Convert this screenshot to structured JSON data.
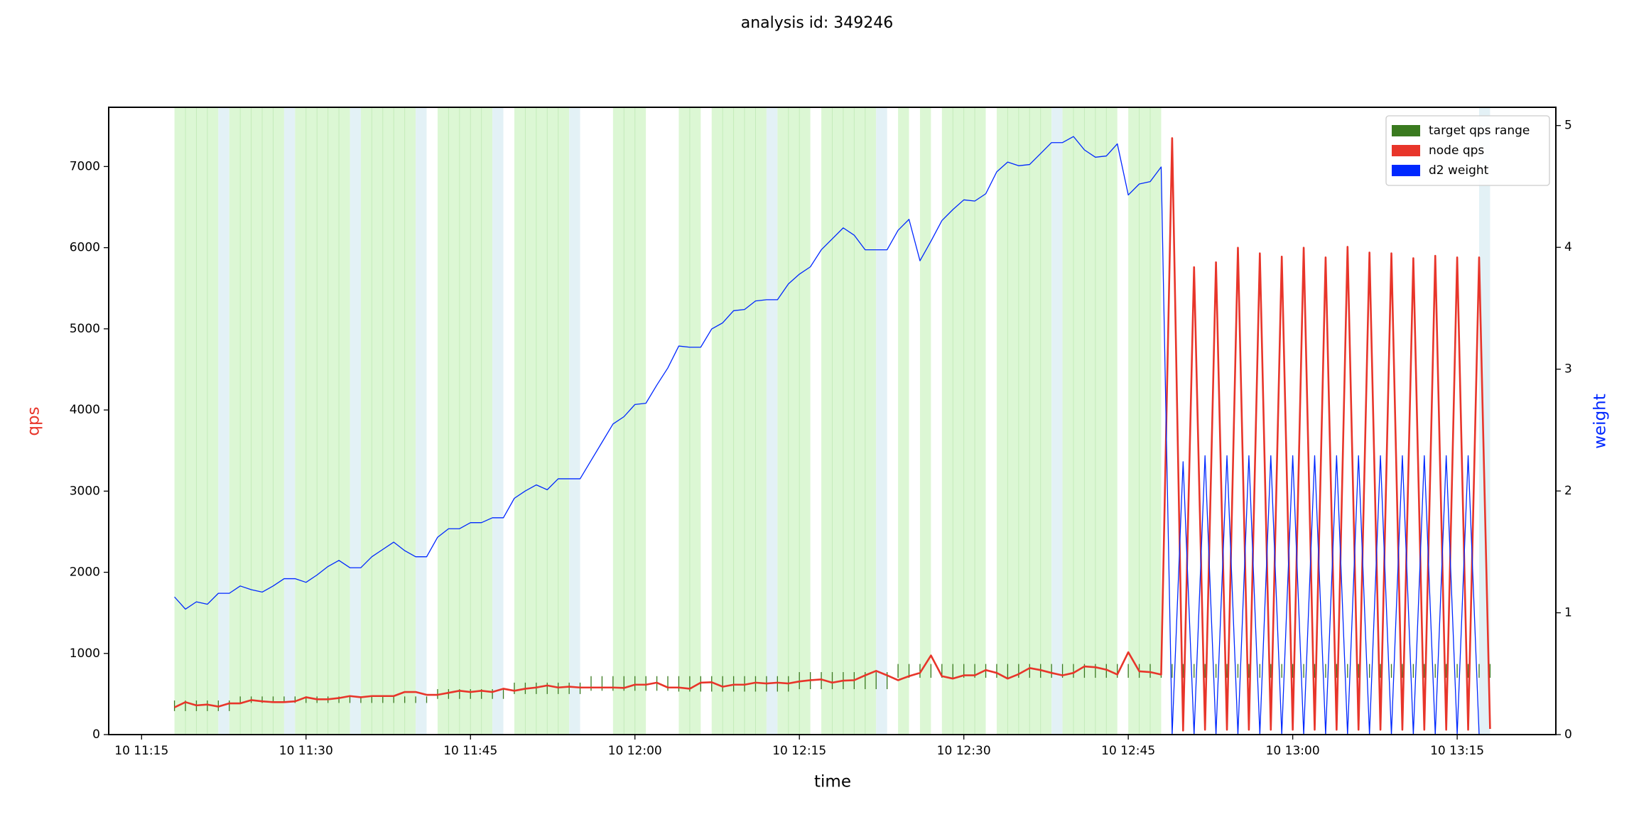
{
  "chart_data": {
    "type": "line",
    "title": "analysis id: 349246",
    "xlabel": "time",
    "ylabel": "qps",
    "y2label": "weight",
    "x": [
      "10 11:18",
      "10 11:19",
      "10 11:20",
      "10 11:21",
      "10 11:22",
      "10 11:23",
      "10 11:24",
      "10 11:25",
      "10 11:26",
      "10 11:27",
      "10 11:28",
      "10 11:29",
      "10 11:30",
      "10 11:31",
      "10 11:32",
      "10 11:33",
      "10 11:34",
      "10 11:35",
      "10 11:36",
      "10 11:37",
      "10 11:38",
      "10 11:39",
      "10 11:40",
      "10 11:41",
      "10 11:42",
      "10 11:43",
      "10 11:44",
      "10 11:45",
      "10 11:46",
      "10 11:47",
      "10 11:48",
      "10 11:49",
      "10 11:50",
      "10 11:51",
      "10 11:52",
      "10 11:53",
      "10 11:54",
      "10 11:55",
      "10 11:56",
      "10 11:57",
      "10 11:58",
      "10 11:59",
      "10 12:00",
      "10 12:01",
      "10 12:02",
      "10 12:03",
      "10 12:04",
      "10 12:05",
      "10 12:06",
      "10 12:07",
      "10 12:08",
      "10 12:09",
      "10 12:10",
      "10 12:11",
      "10 12:12",
      "10 12:13",
      "10 12:14",
      "10 12:15",
      "10 12:16",
      "10 12:17",
      "10 12:18",
      "10 12:19",
      "10 12:20",
      "10 12:21",
      "10 12:22",
      "10 12:23",
      "10 12:24",
      "10 12:25",
      "10 12:26",
      "10 12:27",
      "10 12:28",
      "10 12:29",
      "10 12:30",
      "10 12:31",
      "10 12:32",
      "10 12:33",
      "10 12:34",
      "10 12:35",
      "10 12:36",
      "10 12:37",
      "10 12:38",
      "10 12:39",
      "10 12:40",
      "10 12:41",
      "10 12:42",
      "10 12:43",
      "10 12:44",
      "10 12:45",
      "10 12:46",
      "10 12:47",
      "10 12:48",
      "10 12:49",
      "10 12:50",
      "10 12:51",
      "10 12:52",
      "10 12:53",
      "10 12:54",
      "10 12:55",
      "10 12:56",
      "10 12:57",
      "10 12:58",
      "10 12:59",
      "10 13:00",
      "10 13:01",
      "10 13:02",
      "10 13:03",
      "10 13:04",
      "10 13:05",
      "10 13:06",
      "10 13:07",
      "10 13:08",
      "10 13:09",
      "10 13:10",
      "10 13:11",
      "10 13:12",
      "10 13:13",
      "10 13:14",
      "10 13:15",
      "10 13:16",
      "10 13:17",
      "10 13:18"
    ],
    "series": [
      {
        "name": "target qps range",
        "color": "#3a7a1f",
        "low": [
          290,
          290,
          290,
          290,
          290,
          290,
          390,
          390,
          390,
          390,
          390,
          390,
          390,
          390,
          390,
          390,
          390,
          390,
          390,
          390,
          390,
          390,
          390,
          390,
          440,
          440,
          440,
          440,
          440,
          440,
          440,
          500,
          500,
          500,
          500,
          500,
          500,
          500,
          540,
          540,
          540,
          540,
          540,
          540,
          540,
          540,
          530,
          530,
          530,
          530,
          530,
          530,
          530,
          530,
          530,
          530,
          530,
          560,
          560,
          560,
          560,
          560,
          560,
          560,
          560,
          560,
          700,
          700,
          700,
          700,
          700,
          700,
          700,
          700,
          700,
          700,
          700,
          700,
          700,
          700,
          700,
          700,
          700,
          700,
          700,
          700,
          700,
          700,
          700,
          700,
          700,
          700,
          700,
          700,
          700,
          700,
          700,
          700,
          700,
          700,
          700,
          700,
          700,
          700,
          700,
          700,
          700,
          700,
          700,
          700,
          700,
          700,
          700,
          700,
          700,
          700,
          700,
          700,
          700,
          700,
          700
        ],
        "high": [
          420,
          420,
          420,
          420,
          420,
          420,
          470,
          470,
          470,
          470,
          470,
          470,
          470,
          470,
          470,
          470,
          470,
          470,
          470,
          470,
          470,
          470,
          470,
          470,
          560,
          560,
          560,
          560,
          560,
          560,
          560,
          640,
          640,
          640,
          640,
          640,
          640,
          640,
          720,
          720,
          720,
          720,
          720,
          720,
          720,
          720,
          720,
          720,
          720,
          720,
          720,
          720,
          720,
          720,
          720,
          720,
          720,
          770,
          770,
          770,
          770,
          770,
          770,
          770,
          770,
          770,
          870,
          870,
          870,
          870,
          870,
          870,
          870,
          870,
          870,
          870,
          870,
          870,
          870,
          870,
          870,
          870,
          870,
          870,
          870,
          870,
          870,
          870,
          870,
          870,
          870,
          870,
          870,
          870,
          870,
          870,
          870,
          870,
          870,
          870,
          870,
          870,
          870,
          870,
          870,
          870,
          870,
          870,
          870,
          870,
          870,
          870,
          870,
          870,
          870,
          870,
          870,
          870,
          870,
          870,
          870
        ]
      },
      {
        "name": "node qps",
        "color": "#e8352a",
        "values": [
          335,
          400,
          360,
          370,
          345,
          385,
          385,
          425,
          410,
          400,
          400,
          410,
          460,
          435,
          435,
          450,
          475,
          460,
          475,
          475,
          475,
          525,
          525,
          490,
          490,
          515,
          540,
          525,
          540,
          525,
          565,
          540,
          565,
          580,
          605,
          580,
          590,
          580,
          580,
          580,
          580,
          575,
          615,
          615,
          640,
          580,
          580,
          565,
          640,
          645,
          590,
          615,
          615,
          640,
          630,
          640,
          630,
          655,
          670,
          680,
          640,
          665,
          670,
          730,
          785,
          730,
          670,
          720,
          760,
          975,
          720,
          690,
          730,
          730,
          795,
          760,
          690,
          745,
          820,
          795,
          760,
          730,
          760,
          840,
          830,
          800,
          740,
          1015,
          780,
          770,
          740,
          7350,
          50,
          5760,
          60,
          5820,
          60,
          6000,
          60,
          5930,
          60,
          5890,
          60,
          6000,
          60,
          5880,
          60,
          6010,
          60,
          5940,
          60,
          5930,
          60,
          5870,
          60,
          5900,
          60,
          5880,
          60,
          5880,
          70
        ]
      },
      {
        "name": "d2 weight",
        "color": "#0028ff",
        "axis": "y2",
        "values": [
          1.13,
          1.03,
          1.09,
          1.07,
          1.16,
          1.16,
          1.22,
          1.19,
          1.17,
          1.22,
          1.28,
          1.28,
          1.25,
          1.31,
          1.38,
          1.43,
          1.37,
          1.37,
          1.46,
          1.52,
          1.58,
          1.51,
          1.46,
          1.46,
          1.62,
          1.69,
          1.69,
          1.74,
          1.74,
          1.78,
          1.78,
          1.94,
          2.0,
          2.05,
          2.01,
          2.1,
          2.1,
          2.1,
          2.25,
          2.4,
          2.55,
          2.61,
          2.71,
          2.72,
          2.87,
          3.01,
          3.19,
          3.18,
          3.18,
          3.33,
          3.38,
          3.48,
          3.49,
          3.56,
          3.57,
          3.57,
          3.7,
          3.78,
          3.84,
          3.98,
          4.07,
          4.16,
          4.1,
          3.98,
          3.98,
          3.98,
          4.14,
          4.23,
          3.89,
          4.05,
          4.22,
          4.31,
          4.39,
          4.38,
          4.44,
          4.62,
          4.7,
          4.67,
          4.68,
          4.77,
          4.86,
          4.86,
          4.91,
          4.8,
          4.74,
          4.75,
          4.85,
          4.43,
          4.52,
          4.54,
          4.66,
          0,
          2.24,
          0,
          2.29,
          0,
          2.29,
          0,
          2.29,
          0,
          2.29,
          0,
          2.29,
          0,
          2.29,
          0,
          2.29,
          0,
          2.29,
          0,
          2.29,
          0,
          2.29,
          0,
          2.29,
          0,
          2.29,
          0,
          2.29,
          0,
          null
        ]
      }
    ],
    "bands": [
      {
        "from": "10 11:18",
        "to": "10 11:22",
        "color": "#dcf7d4"
      },
      {
        "from": "10 11:22",
        "to": "10 11:23",
        "color": "#e3f1f6"
      },
      {
        "from": "10 11:23",
        "to": "10 11:28",
        "color": "#dcf7d4"
      },
      {
        "from": "10 11:28",
        "to": "10 11:29",
        "color": "#e3f1f6"
      },
      {
        "from": "10 11:29",
        "to": "10 11:34",
        "color": "#dcf7d4"
      },
      {
        "from": "10 11:34",
        "to": "10 11:35",
        "color": "#e3f1f6"
      },
      {
        "from": "10 11:35",
        "to": "10 11:40",
        "color": "#dcf7d4"
      },
      {
        "from": "10 11:40",
        "to": "10 11:41",
        "color": "#e3f1f6"
      },
      {
        "from": "10 11:42",
        "to": "10 11:47",
        "color": "#dcf7d4"
      },
      {
        "from": "10 11:47",
        "to": "10 11:48",
        "color": "#e3f1f6"
      },
      {
        "from": "10 11:49",
        "to": "10 11:54",
        "color": "#dcf7d4"
      },
      {
        "from": "10 11:54",
        "to": "10 11:55",
        "color": "#e3f1f6"
      },
      {
        "from": "10 11:58",
        "to": "10 12:01",
        "color": "#dcf7d4"
      },
      {
        "from": "10 12:04",
        "to": "10 12:06",
        "color": "#dcf7d4"
      },
      {
        "from": "10 12:07",
        "to": "10 12:12",
        "color": "#dcf7d4"
      },
      {
        "from": "10 12:12",
        "to": "10 12:13",
        "color": "#e3f1f6"
      },
      {
        "from": "10 12:13",
        "to": "10 12:16",
        "color": "#dcf7d4"
      },
      {
        "from": "10 12:17",
        "to": "10 12:22",
        "color": "#dcf7d4"
      },
      {
        "from": "10 12:22",
        "to": "10 12:23",
        "color": "#e3f1f6"
      },
      {
        "from": "10 12:24",
        "to": "10 12:25",
        "color": "#dcf7d4"
      },
      {
        "from": "10 12:26",
        "to": "10 12:27",
        "color": "#dcf7d4"
      },
      {
        "from": "10 12:28",
        "to": "10 12:32",
        "color": "#dcf7d4"
      },
      {
        "from": "10 12:33",
        "to": "10 12:38",
        "color": "#dcf7d4"
      },
      {
        "from": "10 12:38",
        "to": "10 12:39",
        "color": "#e3f1f6"
      },
      {
        "from": "10 12:39",
        "to": "10 12:44",
        "color": "#dcf7d4"
      },
      {
        "from": "10 12:45",
        "to": "10 12:48",
        "color": "#dcf7d4"
      },
      {
        "from": "10 13:17",
        "to": "10 13:18",
        "color": "#e3f1f6"
      }
    ],
    "xlim": [
      "10 11:12",
      "10 13:24"
    ],
    "xticks": [
      "10 11:15",
      "10 11:30",
      "10 11:45",
      "10 12:00",
      "10 12:15",
      "10 12:30",
      "10 12:45",
      "10 13:00",
      "10 13:15"
    ],
    "ylim": [
      0,
      7730
    ],
    "yticks": [
      0,
      1000,
      2000,
      3000,
      4000,
      5000,
      6000,
      7000
    ],
    "y2lim": [
      0,
      5.15
    ],
    "y2ticks": [
      0,
      1,
      2,
      3,
      4,
      5
    ],
    "grid": false,
    "legend": "upper right"
  }
}
